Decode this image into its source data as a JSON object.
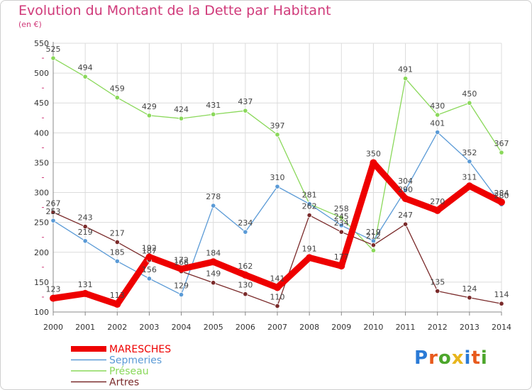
{
  "header": {
    "title": "Evolution du Montant de la Dette par Habitant",
    "subtitle": "(en €)"
  },
  "logo": {
    "letters": [
      "P",
      "r",
      "o",
      "x",
      "i",
      "t",
      "i"
    ],
    "colors": [
      "#2a7ad6",
      "#e85a1c",
      "#4ca62b",
      "#e8b51c",
      "#2a7ad6",
      "#e85a1c",
      "#4ca62b"
    ]
  },
  "chart_data": {
    "type": "line",
    "title": "Evolution du Montant de la Dette par Habitant",
    "ylabel": "(en €)",
    "xlabel": "",
    "ylim": [
      100,
      550
    ],
    "yticks": [
      100,
      150,
      200,
      250,
      300,
      350,
      400,
      450,
      500,
      550
    ],
    "grid": true,
    "legend_position": "bottom-left",
    "x": [
      "2000",
      "2001",
      "2002",
      "2003",
      "2004",
      "2005",
      "2006",
      "2007",
      "2008",
      "2009",
      "2010",
      "2011",
      "2012",
      "2013",
      "2014"
    ],
    "series": [
      {
        "name": "Préseau",
        "color": "#8ad85a",
        "values": [
          525,
          494,
          459,
          429,
          424,
          431,
          437,
          397,
          281,
          258,
          203,
          491,
          430,
          450,
          367
        ],
        "labels": [
          "525",
          "494",
          "459",
          "429",
          "424",
          "431",
          "437",
          "397",
          "281",
          "258",
          "",
          "491",
          "430",
          "450",
          "367"
        ]
      },
      {
        "name": "Sepmeries",
        "color": "#5a9ad6",
        "values": [
          253,
          219,
          185,
          156,
          129,
          278,
          234,
          310,
          281,
          245,
          219,
          304,
          401,
          352,
          280
        ],
        "labels": [
          "253",
          "219",
          "185",
          "156",
          "129",
          "278",
          "234",
          "310",
          "",
          "245",
          "219",
          "304",
          "401",
          "352",
          "280"
        ]
      },
      {
        "name": "Artres",
        "color": "#7a2a2a",
        "values": [
          267,
          243,
          217,
          187,
          168,
          149,
          130,
          110,
          262,
          234,
          212,
          247,
          135,
          124,
          114
        ],
        "labels": [
          "267",
          "243",
          "217",
          "187",
          "168",
          "149",
          "130",
          "110",
          "262",
          "234",
          "212",
          "247",
          "135",
          "124",
          "114"
        ]
      },
      {
        "name": "MARESCHES",
        "color": "#ee0000",
        "values": [
          123,
          131,
          113,
          192,
          172,
          184,
          162,
          141,
          191,
          177,
          350,
          290,
          270,
          311,
          284
        ],
        "labels": [
          "123",
          "131",
          "113",
          "192",
          "172",
          "184",
          "162",
          "141",
          "191",
          "177",
          "350",
          "290",
          "270",
          "311",
          "284"
        ]
      }
    ],
    "legend": [
      {
        "name": "MARESCHES",
        "color": "#ee0000"
      },
      {
        "name": "Sepmeries",
        "color": "#5a9ad6"
      },
      {
        "name": "Préseau",
        "color": "#8ad85a"
      },
      {
        "name": "Artres",
        "color": "#7a2a2a"
      }
    ]
  }
}
